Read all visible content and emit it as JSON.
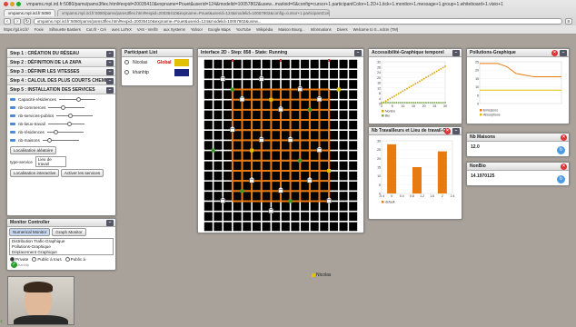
{
  "browser": {
    "title": "vmpams.mpl.ird.fr:5080/pams/pams3flex.html#expid=20035410&expname=Pouet&userid=124&modelid=10057802&usew...marloid=6&config=cursor+1.participantColor+1.2D+1.tick+1.monitor+1.message+1.group+1.whiteboard+1.visio+1",
    "tab_active": "vmpams.mpl.ird.fr:5080",
    "tab_url": "vmpams.mpl.ird.fr:5080/pams/pams3flex.html#expid=20035410&expname=Pouet&userid=124&modelid=10057802&config=cursor+1.participantColor+1.2D+1",
    "address": "vmpams.mpl.ird.fr:5080/pams/pams3flex.html#expid=20035410&expname=Pouet&userid=124&modelid=10057802&usew...",
    "bookmarks": [
      "https://git.ird.fr/",
      "Foxie",
      "Silhouette Bastiers",
      "Cut.rfr - Cré",
      "avec LaTeX",
      "VAS - VerifS",
      "aux Systems",
      "Yahoo!",
      "Google Maps",
      "YouTube",
      "Wikipédia",
      "Maison Bourg...",
      "Informations",
      "Divers",
      "Welcome to S...ndcm (TM)"
    ]
  },
  "steps": [
    "Step 1 : CRÉATION DU RÉSEAU",
    "Step 2 : DÉFINITION DE LA ZAPA",
    "Step 3 : DÉFINIR LES VITESSES",
    "Step 4 : CALCUL DES PLUS COURTS CHEMINS",
    "Step 5 : INSTALLATION DES SERVICES"
  ],
  "params": [
    {
      "label": "Capacité-résidences",
      "level": 0.55
    },
    {
      "label": "nb-commerces",
      "level": 0.4
    },
    {
      "label": "nb-services-publics",
      "level": 0.35
    },
    {
      "label": "nb-lieux-travail",
      "level": 0.6
    },
    {
      "label": "nb-résidences",
      "level": 0.2
    },
    {
      "label": "nb-maisons",
      "level": 0.15
    }
  ],
  "controls": {
    "localisation_aleatoire": "Localisation aléatoire",
    "type_service_label": "type-service",
    "type_service_value": "Lieu de travail",
    "localisation_interactive": "Localisation interactive",
    "activer_services": "Activer les services"
  },
  "monitor": {
    "title": "Monitor Controller",
    "tab_numerical": "Numerical Monitor",
    "tab_graph": "Graph Monitor",
    "items": [
      "Distribution Trafic-Graphique",
      "Pollutions-Graphique",
      "Déplacement Graphique"
    ],
    "radio_private": "Private",
    "radio_public_all": "Public à tous",
    "radio_public_to": "Public à",
    "participant_name": "khanhtp"
  },
  "participants": {
    "title": "Participant List",
    "rows": [
      {
        "name": "Nicolas",
        "tag": "Global",
        "color": "#e0c000"
      },
      {
        "name": "khanhtp",
        "tag": "",
        "color": "#1a237e"
      }
    ]
  },
  "interface2d": {
    "title": "Interface 2D - Step: 858 - State: Running",
    "cursor_label": "Nicolas"
  },
  "access_chart": {
    "title": "Accessibilité-Graphique temporel",
    "legend": [
      "Nonbio",
      "Bio"
    ],
    "y_ticks": [
      "32",
      "28",
      "24",
      "20",
      "16",
      "12",
      "8",
      "4",
      "0"
    ],
    "x_ticks": [
      "0",
      "5",
      "10",
      "15",
      "20",
      "25",
      "30"
    ]
  },
  "travail_chart": {
    "title": "Nb Travailleurs et Lieu de travail-G",
    "legend": "default",
    "y_ticks": [
      "30",
      "25",
      "20",
      "15",
      "10",
      "5",
      "0"
    ],
    "x_ticks": [
      "-0.4",
      "0",
      "0.4",
      "0.8",
      "1.2",
      "1.6",
      "2",
      "2.4"
    ]
  },
  "pollution_chart": {
    "title": "Pollutions-Graphique",
    "legend": [
      "Emissions",
      "Absorptions"
    ],
    "y_ticks": [
      "25",
      "20",
      "15",
      "10",
      "5",
      "0"
    ]
  },
  "nb_maisons": {
    "title": "Nb Maisons",
    "value": "12.0"
  },
  "nbbox": {
    "title": "NonBio",
    "value": "14.1970125"
  },
  "colors": {
    "road": "#e87a12",
    "grid": "#ffffff",
    "emissions": "#e87a12",
    "absorptions": "#e0c000",
    "bar": "#e87a12"
  }
}
